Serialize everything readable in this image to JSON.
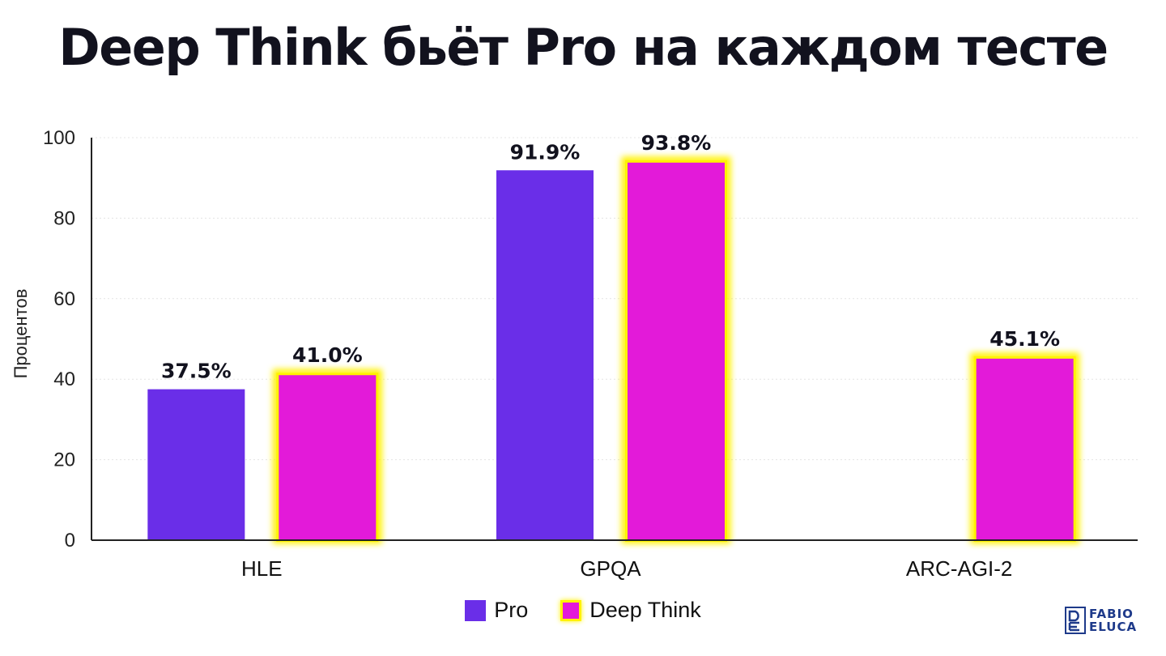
{
  "chart_data": {
    "type": "bar",
    "title": "Deep Think бьёт Pro на каждом тесте",
    "xlabel": "",
    "ylabel": "Процентов",
    "ylim": [
      0,
      100
    ],
    "yticks": [
      0,
      20,
      40,
      60,
      80,
      100
    ],
    "categories": [
      "HLE",
      "GPQA",
      "ARC-AGI-2"
    ],
    "series": [
      {
        "name": "Pro",
        "color": "#6a2ee8",
        "values": [
          37.5,
          91.9,
          null
        ],
        "labels": [
          "37.5%",
          "91.9%",
          ""
        ]
      },
      {
        "name": "Deep Think",
        "color": "#e31ad9",
        "glow": "#fff200",
        "values": [
          41.0,
          93.8,
          45.1
        ],
        "labels": [
          "41.0%",
          "93.8%",
          "45.1%"
        ]
      }
    ],
    "grid": true,
    "legend": "bottom-center"
  },
  "logo": {
    "line1": "FABIO",
    "line2": "ELUCA",
    "color": "#1e3a8a"
  }
}
